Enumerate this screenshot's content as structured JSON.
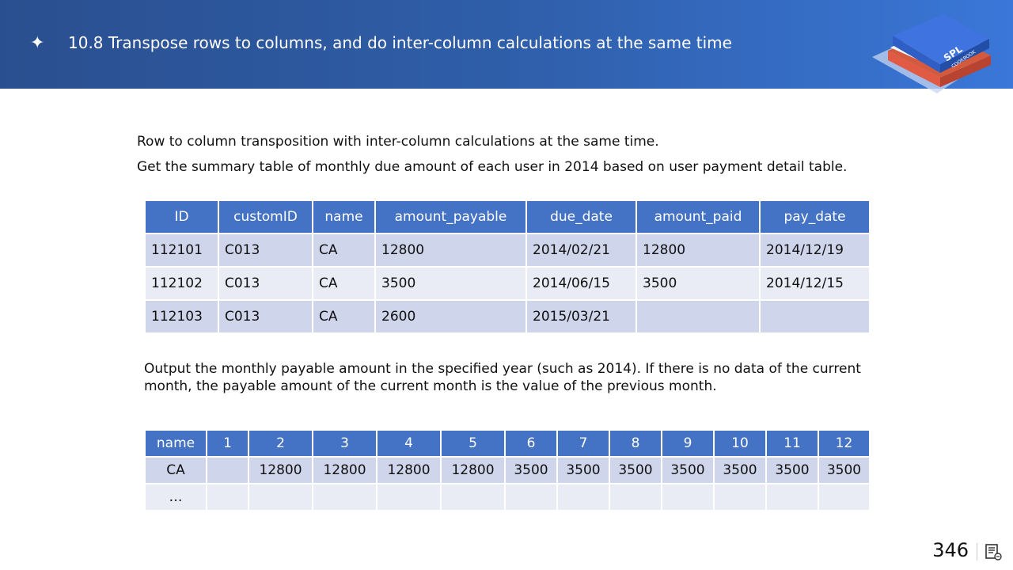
{
  "header": {
    "title": "10.8 Transpose rows to columns, and do inter-column calculations at the same time",
    "star_icon": "star-icon",
    "book_icon": "book-icon",
    "book_text": "SPL",
    "book_subtext": "COOKBOOK"
  },
  "intro": {
    "line1": "Row to column transposition with inter-column calculations at the same time.",
    "line2": "Get the summary table of monthly due amount of each user in 2014 based on user payment detail table."
  },
  "detail_table": {
    "columns": [
      "ID",
      "customID",
      "name",
      "amount_payable",
      "due_date",
      "amount_paid",
      "pay_date"
    ],
    "rows": [
      [
        "112101",
        "C013",
        "CA",
        "12800",
        "2014/02/21",
        "12800",
        "2014/12/19"
      ],
      [
        "112102",
        "C013",
        "CA",
        "3500",
        "2014/06/15",
        "3500",
        "2014/12/15"
      ],
      [
        "112103",
        "C013",
        "CA",
        "2600",
        "2015/03/21",
        "",
        ""
      ]
    ]
  },
  "description": "Output the monthly payable amount in the specified year (such as 2014). If there is no data of the current month, the payable amount of the current month is the value of the previous month.",
  "summary_table": {
    "columns": [
      "name",
      "1",
      "2",
      "3",
      "4",
      "5",
      "6",
      "7",
      "8",
      "9",
      "10",
      "11",
      "12"
    ],
    "rows": [
      [
        "CA",
        "",
        "12800",
        "12800",
        "12800",
        "12800",
        "3500",
        "3500",
        "3500",
        "3500",
        "3500",
        "3500",
        "3500"
      ],
      [
        "…",
        "",
        "",
        "",
        "",
        "",
        "",
        "",
        "",
        "",
        "",
        "",
        ""
      ]
    ]
  },
  "footer": {
    "page_number": "346",
    "doc_icon": "document-icon"
  },
  "colors": {
    "header_start": "#2a4f8f",
    "header_end": "#3a77d8",
    "table_header": "#4472c4",
    "row_odd": "#cfd5ea",
    "row_even": "#e9ebf5"
  }
}
